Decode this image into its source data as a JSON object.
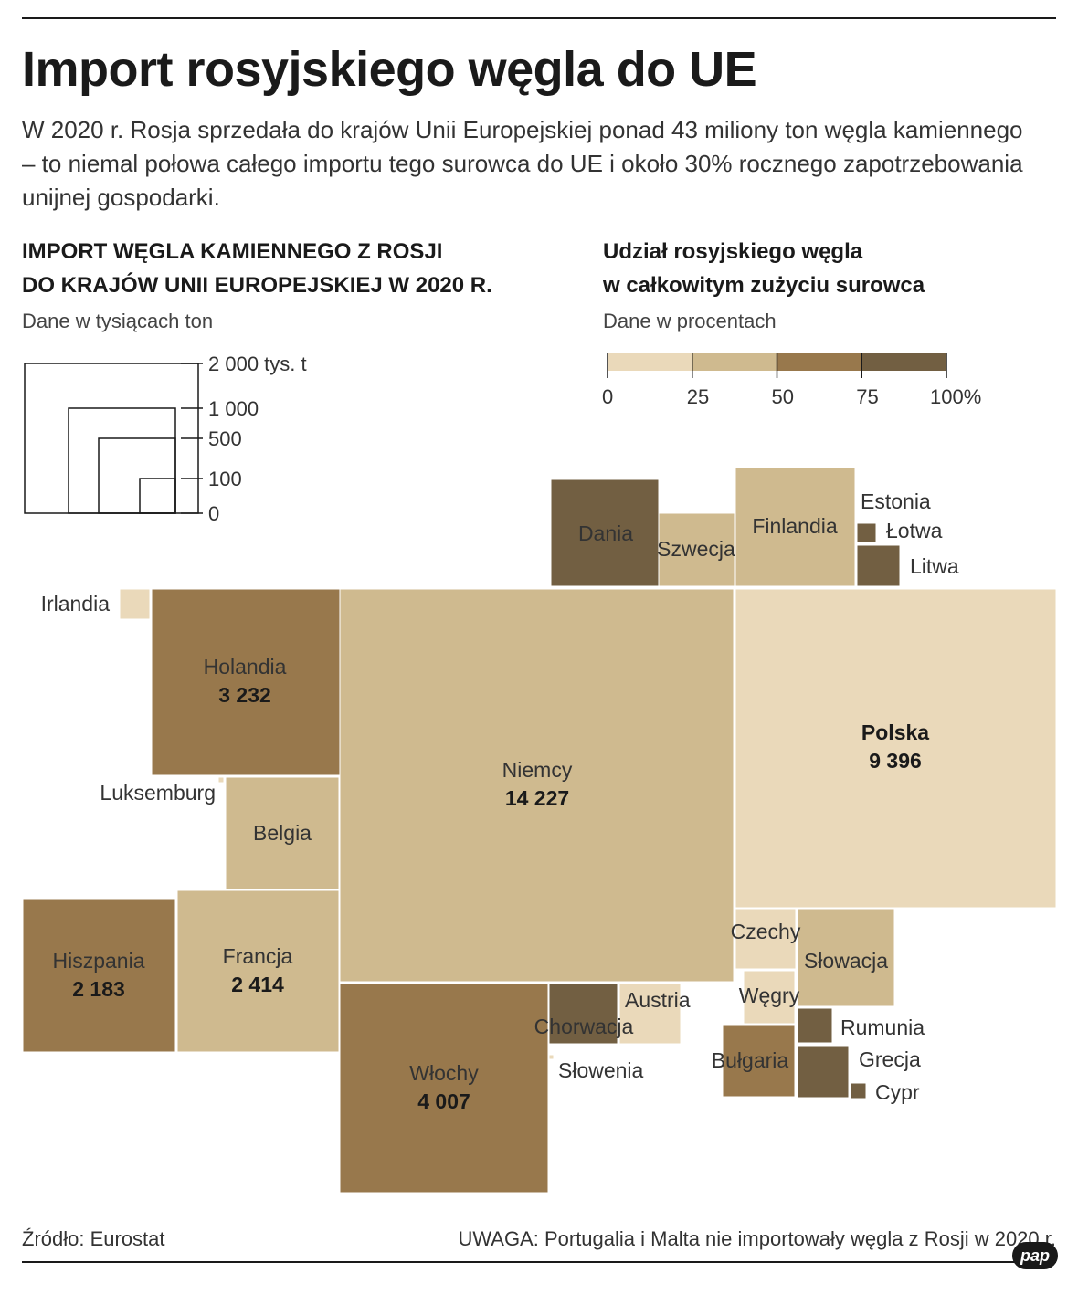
{
  "header": {
    "title": "Import rosyjskiego węgla do UE",
    "lead": "W 2020 r. Rosja sprzedała do krajów Unii Europejskiej ponad 43 miliony ton węgla kamiennego – to niemal połowa całego importu tego surowca do UE i około 30% rocznego zapotrzebowania unijnej gospodarki."
  },
  "left_panel": {
    "heading_line1": "IMPORT WĘGLA KAMIENNEGO Z ROSJI",
    "heading_line2": "DO KRAJÓW UNII EUROPEJSKIEJ W 2020 R.",
    "subtitle": "Dane w tysiącach ton"
  },
  "right_panel": {
    "heading_line1": "Udział rosyjskiego węgla",
    "heading_line2": "w całkowitym zużyciu surowca",
    "subtitle": "Dane w procentach"
  },
  "colors": {
    "bin_0_25": "#ead9ba",
    "bin_25_50": "#cfba8f",
    "bin_50_75": "#98784c",
    "bin_75_100": "#725f42",
    "stroke": "#ffffff",
    "text": "#1a1a1a"
  },
  "chart_data": {
    "type": "treemap",
    "title": "IMPORT WĘGLA KAMIENNEGO Z ROSJI DO KRAJÓW UNII EUROPEJSKIEJ W 2020 R.",
    "size_unit": "tys. t",
    "size_legend": {
      "values": [
        2000,
        1000,
        500,
        100,
        0
      ],
      "labels": [
        "2 000 tys. t",
        "1 000",
        "500",
        "100",
        "0"
      ]
    },
    "color_legend": {
      "title": "Udział rosyjskiego węgla w całkowitym zużyciu surowca",
      "unit": "%",
      "bins": [
        {
          "from": 0,
          "to": 25,
          "color": "#ead9ba"
        },
        {
          "from": 25,
          "to": 50,
          "color": "#cfba8f"
        },
        {
          "from": 50,
          "to": 75,
          "color": "#98784c"
        },
        {
          "from": 75,
          "to": 100,
          "color": "#725f42"
        }
      ],
      "ticks": [
        "0",
        "25",
        "50",
        "75",
        "100%"
      ]
    },
    "countries": [
      {
        "name": "Dania",
        "share_bin": 3
      },
      {
        "name": "Szwecja",
        "share_bin": 1
      },
      {
        "name": "Finlandia",
        "share_bin": 1
      },
      {
        "name": "Estonia",
        "share_bin": 1
      },
      {
        "name": "Łotwa",
        "share_bin": 3
      },
      {
        "name": "Litwa",
        "share_bin": 3
      },
      {
        "name": "Irlandia",
        "share_bin": 0
      },
      {
        "name": "Holandia",
        "value": 3232,
        "value_label": "3 232",
        "share_bin": 2
      },
      {
        "name": "Niemcy",
        "value": 14227,
        "value_label": "14 227",
        "share_bin": 1
      },
      {
        "name": "Polska",
        "value": 9396,
        "value_label": "9 396",
        "share_bin": 0
      },
      {
        "name": "Luksemburg",
        "share_bin": 0
      },
      {
        "name": "Belgia",
        "share_bin": 1
      },
      {
        "name": "Hiszpania",
        "value": 2183,
        "value_label": "2 183",
        "share_bin": 2
      },
      {
        "name": "Francja",
        "value": 2414,
        "value_label": "2 414",
        "share_bin": 1
      },
      {
        "name": "Czechy",
        "share_bin": 0
      },
      {
        "name": "Słowacja",
        "share_bin": 1
      },
      {
        "name": "Węgry",
        "share_bin": 0
      },
      {
        "name": "Austria",
        "share_bin": 0
      },
      {
        "name": "Chorwacja",
        "share_bin": 3
      },
      {
        "name": "Słowenia",
        "share_bin": 0
      },
      {
        "name": "Włochy",
        "value": 4007,
        "value_label": "4 007",
        "share_bin": 2
      },
      {
        "name": "Bułgaria",
        "share_bin": 2
      },
      {
        "name": "Rumunia",
        "share_bin": 3
      },
      {
        "name": "Grecja",
        "share_bin": 3
      },
      {
        "name": "Cypr",
        "share_bin": 3
      }
    ]
  },
  "footer": {
    "source": "Źródło: Eurostat",
    "note": "UWAGA: Portugalia i Malta nie importowały węgla z Rosji w 2020 r.",
    "logo": "pap"
  }
}
